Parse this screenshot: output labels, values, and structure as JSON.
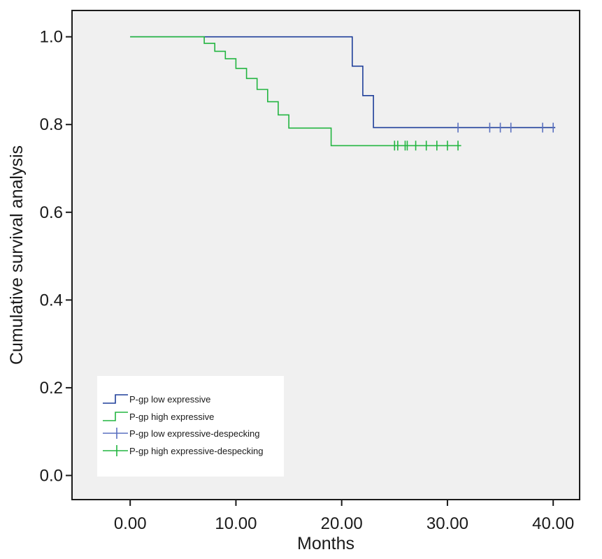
{
  "chart_data": {
    "type": "line",
    "title": "",
    "xlabel": "Months",
    "ylabel": "Cumulative survival analysis",
    "xlim": [
      -5.5,
      42.5
    ],
    "ylim": [
      -0.055,
      1.06
    ],
    "xticks": [
      0,
      10,
      20,
      30,
      40
    ],
    "xtick_labels": [
      "0.00",
      "10.00",
      "20.00",
      "30.00",
      "40.00"
    ],
    "yticks": [
      0.0,
      0.2,
      0.4,
      0.6,
      0.8,
      1.0
    ],
    "ytick_labels": [
      "0.0",
      "0.2",
      "0.4",
      "0.6",
      "0.8",
      "1.0"
    ],
    "grid": false,
    "legend_position": "bottom-left",
    "background": "#f0f0f0",
    "series": [
      {
        "name": "P-gp low expressive",
        "color": "#1f3f9a",
        "censor_color": "#5a70c0",
        "step_points": [
          [
            0,
            1.0
          ],
          [
            21,
            1.0
          ],
          [
            21,
            0.933
          ],
          [
            22,
            0.933
          ],
          [
            22,
            0.866
          ],
          [
            23,
            0.866
          ],
          [
            23,
            0.793
          ],
          [
            40.2,
            0.793
          ]
        ],
        "censored_x": [
          31,
          34,
          35,
          36,
          39,
          40
        ]
      },
      {
        "name": "P-gp high expressive",
        "color": "#22b540",
        "censor_color": "#22b540",
        "step_points": [
          [
            0,
            1.0
          ],
          [
            7,
            1.0
          ],
          [
            7,
            0.985
          ],
          [
            8,
            0.985
          ],
          [
            8,
            0.967
          ],
          [
            9,
            0.967
          ],
          [
            9,
            0.95
          ],
          [
            10,
            0.95
          ],
          [
            10,
            0.928
          ],
          [
            11,
            0.928
          ],
          [
            11,
            0.905
          ],
          [
            12,
            0.905
          ],
          [
            12,
            0.88
          ],
          [
            13,
            0.88
          ],
          [
            13,
            0.852
          ],
          [
            14,
            0.852
          ],
          [
            14,
            0.822
          ],
          [
            15,
            0.822
          ],
          [
            15,
            0.792
          ],
          [
            19,
            0.792
          ],
          [
            19,
            0.752
          ],
          [
            31.3,
            0.752
          ]
        ],
        "censored_x": [
          25,
          25.3,
          26,
          26.2,
          27,
          28,
          29,
          30,
          31
        ]
      }
    ],
    "legend": [
      {
        "label": "P-gp low expressive",
        "kind": "step",
        "color": "#1f3f9a"
      },
      {
        "label": "P-gp high expressive",
        "kind": "step",
        "color": "#22b540"
      },
      {
        "label": "P-gp low expressive-despecking",
        "kind": "censor",
        "color": "#5a70c0"
      },
      {
        "label": "P-gp high expressive-despecking",
        "kind": "censor",
        "color": "#22b540"
      }
    ]
  }
}
